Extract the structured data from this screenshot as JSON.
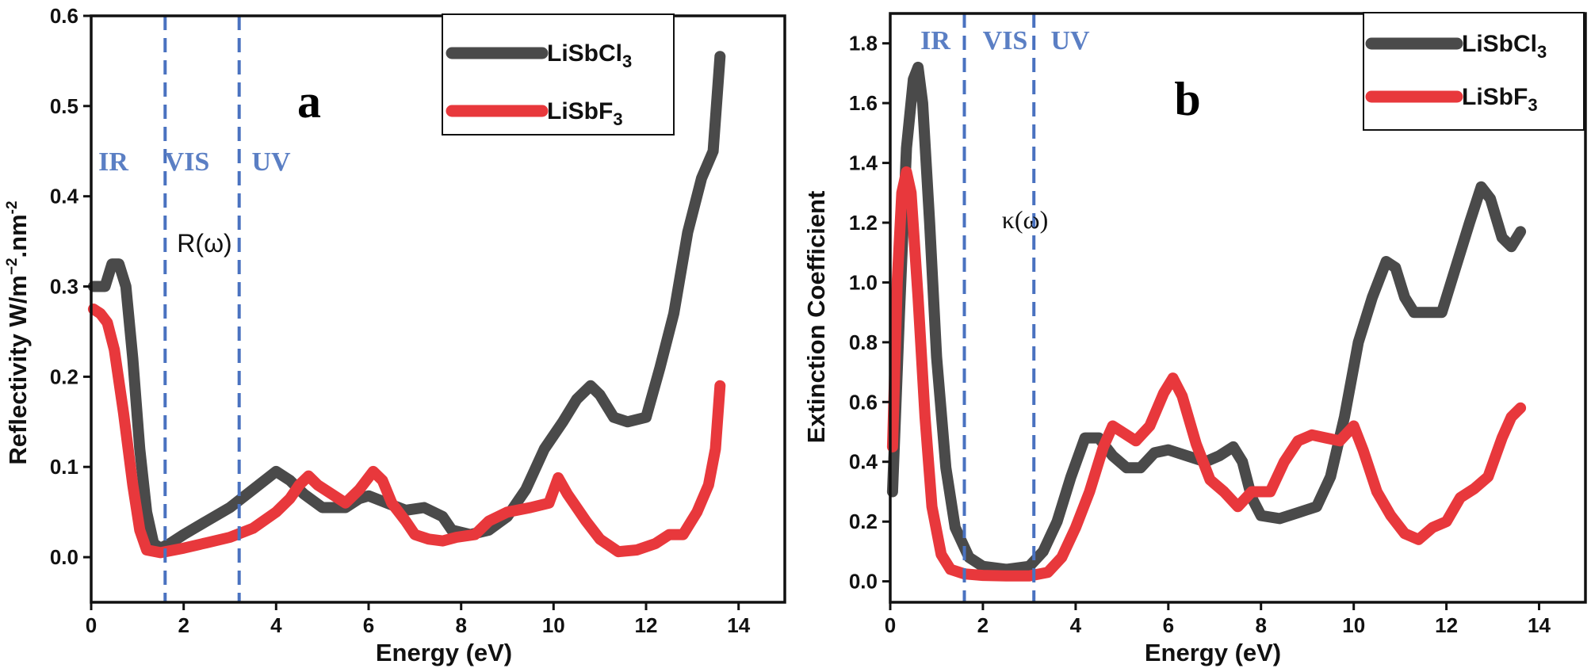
{
  "chart_data": [
    {
      "type": "line",
      "panel_label": "a",
      "title": "",
      "xlabel": "Energy (eV)",
      "ylabel": "Reflectivity W/m",
      "ylabel_sup1": "−2",
      "ylabel_mid": ".nm",
      "ylabel_sup2": "-2",
      "xlim": [
        0,
        15
      ],
      "ylim": [
        -0.05,
        0.6
      ],
      "xticks": [
        0,
        2,
        4,
        6,
        8,
        10,
        12,
        14
      ],
      "xtick_labels": [
        "0",
        "2",
        "4",
        "6",
        "8",
        "10",
        "12",
        "14"
      ],
      "yticks": [
        0.0,
        0.1,
        0.2,
        0.3,
        0.4,
        0.5,
        0.6
      ],
      "ytick_labels": [
        "0.0",
        "0.1",
        "0.2",
        "0.3",
        "0.4",
        "0.5",
        "0.6"
      ],
      "vlines": [
        1.6,
        3.2
      ],
      "region_labels": [
        "IR",
        "VIS",
        "UV"
      ],
      "function_label": "R(ω)",
      "legend_position": "top-right",
      "series": [
        {
          "name": "LiSbCl",
          "name_sub": "3",
          "color": "#4a4a4a",
          "points": [
            [
              0.05,
              0.3
            ],
            [
              0.3,
              0.3
            ],
            [
              0.45,
              0.325
            ],
            [
              0.6,
              0.325
            ],
            [
              0.75,
              0.3
            ],
            [
              0.9,
              0.22
            ],
            [
              1.05,
              0.12
            ],
            [
              1.2,
              0.05
            ],
            [
              1.35,
              0.015
            ],
            [
              1.5,
              0.01
            ],
            [
              1.7,
              0.015
            ],
            [
              2.0,
              0.025
            ],
            [
              2.5,
              0.04
            ],
            [
              3.0,
              0.055
            ],
            [
              3.5,
              0.075
            ],
            [
              4.0,
              0.095
            ],
            [
              4.3,
              0.085
            ],
            [
              4.6,
              0.07
            ],
            [
              5.0,
              0.055
            ],
            [
              5.5,
              0.055
            ],
            [
              5.8,
              0.065
            ],
            [
              6.0,
              0.068
            ],
            [
              6.4,
              0.06
            ],
            [
              6.8,
              0.052
            ],
            [
              7.2,
              0.055
            ],
            [
              7.6,
              0.045
            ],
            [
              7.8,
              0.03
            ],
            [
              8.2,
              0.025
            ],
            [
              8.6,
              0.03
            ],
            [
              9.0,
              0.045
            ],
            [
              9.4,
              0.075
            ],
            [
              9.8,
              0.12
            ],
            [
              10.2,
              0.15
            ],
            [
              10.5,
              0.175
            ],
            [
              10.8,
              0.19
            ],
            [
              11.0,
              0.18
            ],
            [
              11.3,
              0.155
            ],
            [
              11.6,
              0.15
            ],
            [
              12.0,
              0.155
            ],
            [
              12.3,
              0.21
            ],
            [
              12.6,
              0.27
            ],
            [
              12.9,
              0.36
            ],
            [
              13.2,
              0.42
            ],
            [
              13.45,
              0.45
            ],
            [
              13.6,
              0.555
            ]
          ]
        },
        {
          "name": "LiSbF",
          "name_sub": "3",
          "color": "#e8383c",
          "points": [
            [
              0.05,
              0.275
            ],
            [
              0.2,
              0.27
            ],
            [
              0.35,
              0.26
            ],
            [
              0.5,
              0.23
            ],
            [
              0.7,
              0.16
            ],
            [
              0.9,
              0.08
            ],
            [
              1.05,
              0.03
            ],
            [
              1.2,
              0.008
            ],
            [
              1.5,
              0.005
            ],
            [
              2.0,
              0.01
            ],
            [
              2.5,
              0.016
            ],
            [
              3.0,
              0.022
            ],
            [
              3.5,
              0.032
            ],
            [
              4.0,
              0.05
            ],
            [
              4.3,
              0.065
            ],
            [
              4.5,
              0.08
            ],
            [
              4.7,
              0.09
            ],
            [
              4.9,
              0.08
            ],
            [
              5.2,
              0.07
            ],
            [
              5.5,
              0.06
            ],
            [
              5.8,
              0.075
            ],
            [
              6.1,
              0.095
            ],
            [
              6.3,
              0.085
            ],
            [
              6.5,
              0.06
            ],
            [
              6.8,
              0.04
            ],
            [
              7.0,
              0.025
            ],
            [
              7.3,
              0.02
            ],
            [
              7.6,
              0.018
            ],
            [
              7.9,
              0.022
            ],
            [
              8.3,
              0.025
            ],
            [
              8.6,
              0.04
            ],
            [
              9.0,
              0.05
            ],
            [
              9.5,
              0.055
            ],
            [
              9.9,
              0.06
            ],
            [
              10.1,
              0.088
            ],
            [
              10.3,
              0.07
            ],
            [
              10.7,
              0.04
            ],
            [
              11.0,
              0.02
            ],
            [
              11.4,
              0.006
            ],
            [
              11.8,
              0.008
            ],
            [
              12.2,
              0.015
            ],
            [
              12.5,
              0.025
            ],
            [
              12.8,
              0.025
            ],
            [
              13.1,
              0.05
            ],
            [
              13.35,
              0.08
            ],
            [
              13.5,
              0.12
            ],
            [
              13.6,
              0.19
            ]
          ]
        }
      ]
    },
    {
      "type": "line",
      "panel_label": "b",
      "title": "",
      "xlabel": "Energy (eV)",
      "ylabel": "Extinction Coefficient",
      "xlim": [
        0,
        15
      ],
      "ylim": [
        -0.07,
        1.9
      ],
      "xticks": [
        0,
        2,
        4,
        6,
        8,
        10,
        12,
        14
      ],
      "xtick_labels": [
        "0",
        "2",
        "4",
        "6",
        "8",
        "10",
        "12",
        "14"
      ],
      "yticks": [
        0.0,
        0.2,
        0.4,
        0.6,
        0.8,
        1.0,
        1.2,
        1.4,
        1.6,
        1.8
      ],
      "ytick_labels": [
        "0.0",
        "0.2",
        "0.4",
        "0.6",
        "0.8",
        "1.0",
        "1.2",
        "1.4",
        "1.6",
        "1.8"
      ],
      "vlines": [
        1.6,
        3.1
      ],
      "region_labels": [
        "IR",
        "VIS",
        "UV"
      ],
      "function_label": "κ(ω)",
      "legend_position": "top-right",
      "series": [
        {
          "name": "LiSbCl",
          "name_sub": "3",
          "color": "#4a4a4a",
          "points": [
            [
              0.05,
              0.3
            ],
            [
              0.2,
              0.9
            ],
            [
              0.35,
              1.45
            ],
            [
              0.5,
              1.68
            ],
            [
              0.6,
              1.72
            ],
            [
              0.7,
              1.6
            ],
            [
              0.85,
              1.2
            ],
            [
              1.0,
              0.75
            ],
            [
              1.2,
              0.38
            ],
            [
              1.4,
              0.18
            ],
            [
              1.7,
              0.08
            ],
            [
              2.0,
              0.05
            ],
            [
              2.5,
              0.04
            ],
            [
              3.0,
              0.05
            ],
            [
              3.3,
              0.1
            ],
            [
              3.6,
              0.2
            ],
            [
              3.9,
              0.35
            ],
            [
              4.2,
              0.48
            ],
            [
              4.5,
              0.48
            ],
            [
              4.8,
              0.42
            ],
            [
              5.1,
              0.38
            ],
            [
              5.4,
              0.38
            ],
            [
              5.7,
              0.43
            ],
            [
              6.0,
              0.44
            ],
            [
              6.4,
              0.42
            ],
            [
              6.8,
              0.4
            ],
            [
              7.1,
              0.42
            ],
            [
              7.4,
              0.45
            ],
            [
              7.6,
              0.4
            ],
            [
              7.8,
              0.28
            ],
            [
              8.0,
              0.22
            ],
            [
              8.4,
              0.21
            ],
            [
              8.8,
              0.23
            ],
            [
              9.2,
              0.25
            ],
            [
              9.5,
              0.35
            ],
            [
              9.8,
              0.55
            ],
            [
              10.1,
              0.8
            ],
            [
              10.4,
              0.95
            ],
            [
              10.7,
              1.07
            ],
            [
              10.9,
              1.05
            ],
            [
              11.1,
              0.95
            ],
            [
              11.3,
              0.9
            ],
            [
              11.6,
              0.9
            ],
            [
              11.9,
              0.9
            ],
            [
              12.2,
              1.05
            ],
            [
              12.5,
              1.2
            ],
            [
              12.75,
              1.32
            ],
            [
              12.95,
              1.28
            ],
            [
              13.2,
              1.15
            ],
            [
              13.4,
              1.12
            ],
            [
              13.6,
              1.17
            ]
          ]
        },
        {
          "name": "LiSbF",
          "name_sub": "3",
          "color": "#e8383c",
          "points": [
            [
              0.05,
              0.45
            ],
            [
              0.15,
              1.0
            ],
            [
              0.25,
              1.3
            ],
            [
              0.35,
              1.37
            ],
            [
              0.45,
              1.3
            ],
            [
              0.6,
              0.95
            ],
            [
              0.75,
              0.55
            ],
            [
              0.9,
              0.25
            ],
            [
              1.1,
              0.09
            ],
            [
              1.3,
              0.04
            ],
            [
              1.6,
              0.025
            ],
            [
              2.0,
              0.02
            ],
            [
              2.5,
              0.018
            ],
            [
              3.0,
              0.018
            ],
            [
              3.4,
              0.03
            ],
            [
              3.7,
              0.08
            ],
            [
              4.0,
              0.18
            ],
            [
              4.3,
              0.3
            ],
            [
              4.6,
              0.45
            ],
            [
              4.8,
              0.52
            ],
            [
              5.0,
              0.5
            ],
            [
              5.3,
              0.47
            ],
            [
              5.6,
              0.52
            ],
            [
              5.9,
              0.63
            ],
            [
              6.1,
              0.68
            ],
            [
              6.3,
              0.62
            ],
            [
              6.6,
              0.46
            ],
            [
              6.9,
              0.34
            ],
            [
              7.2,
              0.3
            ],
            [
              7.5,
              0.25
            ],
            [
              7.8,
              0.3
            ],
            [
              8.2,
              0.3
            ],
            [
              8.5,
              0.4
            ],
            [
              8.8,
              0.47
            ],
            [
              9.1,
              0.49
            ],
            [
              9.4,
              0.48
            ],
            [
              9.7,
              0.47
            ],
            [
              10.0,
              0.52
            ],
            [
              10.2,
              0.44
            ],
            [
              10.5,
              0.3
            ],
            [
              10.8,
              0.22
            ],
            [
              11.1,
              0.16
            ],
            [
              11.4,
              0.14
            ],
            [
              11.7,
              0.18
            ],
            [
              12.0,
              0.2
            ],
            [
              12.3,
              0.28
            ],
            [
              12.6,
              0.31
            ],
            [
              12.9,
              0.35
            ],
            [
              13.2,
              0.48
            ],
            [
              13.4,
              0.55
            ],
            [
              13.6,
              0.58
            ]
          ]
        }
      ]
    }
  ]
}
